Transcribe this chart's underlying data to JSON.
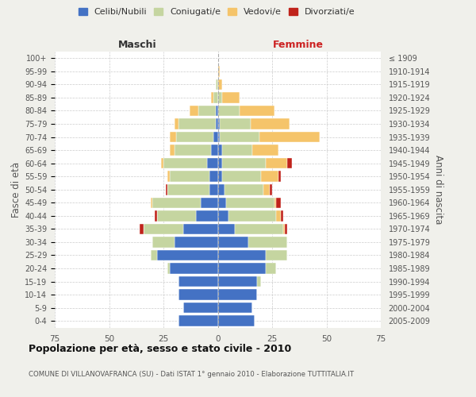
{
  "age_groups": [
    "0-4",
    "5-9",
    "10-14",
    "15-19",
    "20-24",
    "25-29",
    "30-34",
    "35-39",
    "40-44",
    "45-49",
    "50-54",
    "55-59",
    "60-64",
    "65-69",
    "70-74",
    "75-79",
    "80-84",
    "85-89",
    "90-94",
    "95-99",
    "100+"
  ],
  "birth_years": [
    "2005-2009",
    "2000-2004",
    "1995-1999",
    "1990-1994",
    "1985-1989",
    "1980-1984",
    "1975-1979",
    "1970-1974",
    "1965-1969",
    "1960-1964",
    "1955-1959",
    "1950-1954",
    "1945-1949",
    "1940-1944",
    "1935-1939",
    "1930-1934",
    "1925-1929",
    "1920-1924",
    "1915-1919",
    "1910-1914",
    "≤ 1909"
  ],
  "males": {
    "celibi": [
      18,
      16,
      18,
      18,
      22,
      28,
      20,
      16,
      10,
      8,
      4,
      4,
      5,
      3,
      2,
      1,
      1,
      0,
      0,
      0,
      0
    ],
    "coniugati": [
      0,
      0,
      0,
      0,
      1,
      3,
      10,
      18,
      18,
      22,
      19,
      18,
      20,
      17,
      17,
      17,
      8,
      2,
      1,
      0,
      0
    ],
    "vedovi": [
      0,
      0,
      0,
      0,
      0,
      0,
      0,
      0,
      0,
      1,
      0,
      1,
      1,
      2,
      3,
      2,
      4,
      1,
      0,
      0,
      0
    ],
    "divorziati": [
      0,
      0,
      0,
      0,
      0,
      0,
      0,
      2,
      1,
      0,
      1,
      0,
      0,
      0,
      0,
      0,
      0,
      0,
      0,
      0,
      0
    ]
  },
  "females": {
    "nubili": [
      17,
      16,
      18,
      18,
      22,
      22,
      14,
      8,
      5,
      4,
      3,
      2,
      2,
      2,
      1,
      1,
      0,
      0,
      0,
      0,
      0
    ],
    "coniugate": [
      0,
      0,
      0,
      2,
      5,
      10,
      18,
      22,
      22,
      22,
      18,
      18,
      20,
      14,
      18,
      14,
      10,
      2,
      0,
      0,
      0
    ],
    "vedove": [
      0,
      0,
      0,
      0,
      0,
      0,
      0,
      1,
      2,
      1,
      3,
      8,
      10,
      12,
      28,
      18,
      16,
      8,
      2,
      1,
      0
    ],
    "divorziate": [
      0,
      0,
      0,
      0,
      0,
      0,
      0,
      1,
      1,
      2,
      1,
      1,
      2,
      0,
      0,
      0,
      0,
      0,
      0,
      0,
      0
    ]
  },
  "colors": {
    "celibi": "#4472C4",
    "coniugati": "#C5D5A0",
    "vedovi": "#F5C46A",
    "divorziati": "#C0231B"
  },
  "title": "Popolazione per età, sesso e stato civile - 2010",
  "subtitle": "COMUNE DI VILLANOVAFRANCA (SU) - Dati ISTAT 1° gennaio 2010 - Elaborazione TUTTITALIA.IT",
  "xlabel_left": "Maschi",
  "xlabel_right": "Femmine",
  "ylabel_left": "Fasce di età",
  "ylabel_right": "Anni di nascita",
  "legend_labels": [
    "Celibi/Nubili",
    "Coniugati/e",
    "Vedovi/e",
    "Divorziati/e"
  ],
  "xlim": 75,
  "bg_color": "#F0F0EB",
  "plot_bg": "#FFFFFF"
}
